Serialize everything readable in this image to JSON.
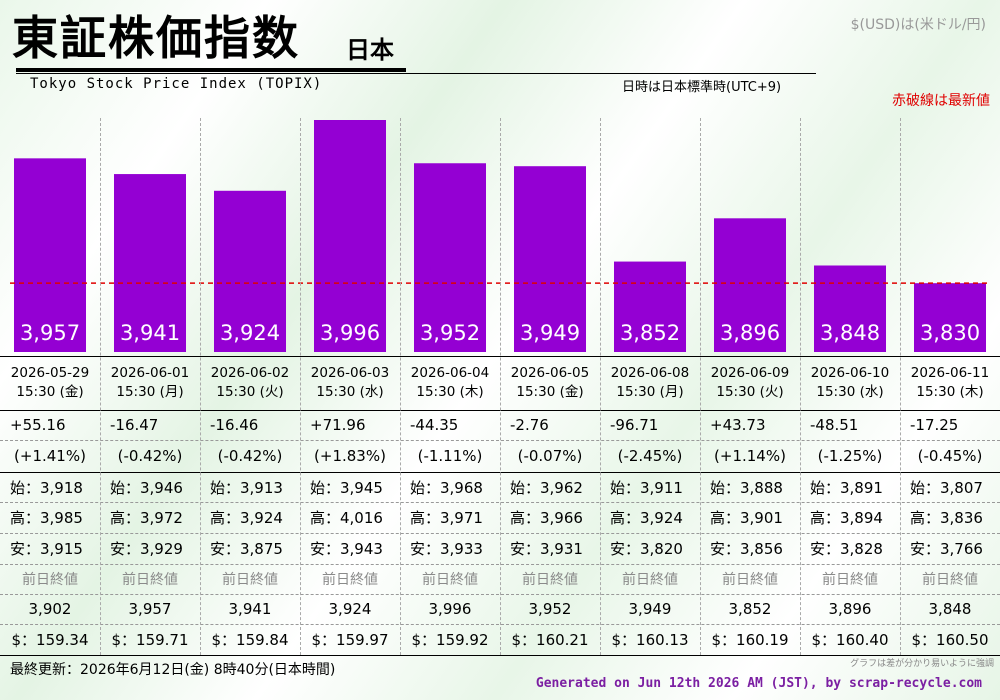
{
  "header": {
    "title_jp": "東証株価指数",
    "region": "日本",
    "title_en": "Tokyo Stock Price Index (TOPIX)",
    "currency_note": "$(USD)は(米ドル/円)",
    "timezone_note": "日時は日本標準時(UTC+9)",
    "latest_line_note": "赤破線は最新値"
  },
  "labels": {
    "open_prefix": "始：",
    "high_prefix": "高：",
    "low_prefix": "安：",
    "prev_close_label": "前日終値",
    "usd_prefix": "$：",
    "bar_color": "#9400d3",
    "latest_line_color": "#e00000"
  },
  "chart_data": {
    "type": "bar",
    "categories": [
      "2026-05-29 15:30 (金)",
      "2026-06-01 15:30 (月)",
      "2026-06-02 15:30 (火)",
      "2026-06-03 15:30 (水)",
      "2026-06-04 15:30 (木)",
      "2026-06-05 15:30 (金)",
      "2026-06-08 15:30 (月)",
      "2026-06-09 15:30 (火)",
      "2026-06-10 15:30 (水)",
      "2026-06-11 15:30 (木)"
    ],
    "values": [
      3957,
      3941,
      3924,
      3996,
      3952,
      3949,
      3852,
      3896,
      3848,
      3830
    ],
    "value_labels": [
      "3,957",
      "3,941",
      "3,924",
      "3,996",
      "3,952",
      "3,949",
      "3,852",
      "3,896",
      "3,848",
      "3,830"
    ],
    "latest_value": 3830,
    "ylim": [
      3760,
      3996
    ],
    "title": "東証株価指数",
    "xlabel": "",
    "ylabel": ""
  },
  "days": [
    {
      "date": "2026-05-29",
      "time": "15:30 (金)",
      "change": "+55.16",
      "change_pct": "(+1.41%)",
      "open": "3,918",
      "high": "3,985",
      "low": "3,915",
      "prev_close": "3,902",
      "usd": "159.34"
    },
    {
      "date": "2026-06-01",
      "time": "15:30 (月)",
      "change": "-16.47",
      "change_pct": "(-0.42%)",
      "open": "3,946",
      "high": "3,972",
      "low": "3,929",
      "prev_close": "3,957",
      "usd": "159.71"
    },
    {
      "date": "2026-06-02",
      "time": "15:30 (火)",
      "change": "-16.46",
      "change_pct": "(-0.42%)",
      "open": "3,913",
      "high": "3,924",
      "low": "3,875",
      "prev_close": "3,941",
      "usd": "159.84"
    },
    {
      "date": "2026-06-03",
      "time": "15:30 (水)",
      "change": "+71.96",
      "change_pct": "(+1.83%)",
      "open": "3,945",
      "high": "4,016",
      "low": "3,943",
      "prev_close": "3,924",
      "usd": "159.97"
    },
    {
      "date": "2026-06-04",
      "time": "15:30 (木)",
      "change": "-44.35",
      "change_pct": "(-1.11%)",
      "open": "3,968",
      "high": "3,971",
      "low": "3,933",
      "prev_close": "3,996",
      "usd": "159.92"
    },
    {
      "date": "2026-06-05",
      "time": "15:30 (金)",
      "change": "-2.76",
      "change_pct": "(-0.07%)",
      "open": "3,962",
      "high": "3,966",
      "low": "3,931",
      "prev_close": "3,952",
      "usd": "160.21"
    },
    {
      "date": "2026-06-08",
      "time": "15:30 (月)",
      "change": "-96.71",
      "change_pct": "(-2.45%)",
      "open": "3,911",
      "high": "3,924",
      "low": "3,820",
      "prev_close": "3,949",
      "usd": "160.13"
    },
    {
      "date": "2026-06-09",
      "time": "15:30 (火)",
      "change": "+43.73",
      "change_pct": "(+1.14%)",
      "open": "3,888",
      "high": "3,901",
      "low": "3,856",
      "prev_close": "3,852",
      "usd": "160.19"
    },
    {
      "date": "2026-06-10",
      "time": "15:30 (水)",
      "change": "-48.51",
      "change_pct": "(-1.25%)",
      "open": "3,891",
      "high": "3,894",
      "low": "3,828",
      "prev_close": "3,896",
      "usd": "160.40"
    },
    {
      "date": "2026-06-11",
      "time": "15:30 (木)",
      "change": "-17.25",
      "change_pct": "(-0.45%)",
      "open": "3,807",
      "high": "3,836",
      "low": "3,766",
      "prev_close": "3,848",
      "usd": "160.50"
    }
  ],
  "footer": {
    "last_updated": "最終更新：2026年6月12日(金) 8時40分(日本時間)",
    "footnote": "グラフは差が分かり易いように強調",
    "generated": "Generated on Jun 12th 2026 AM (JST), by scrap-recycle.com"
  }
}
